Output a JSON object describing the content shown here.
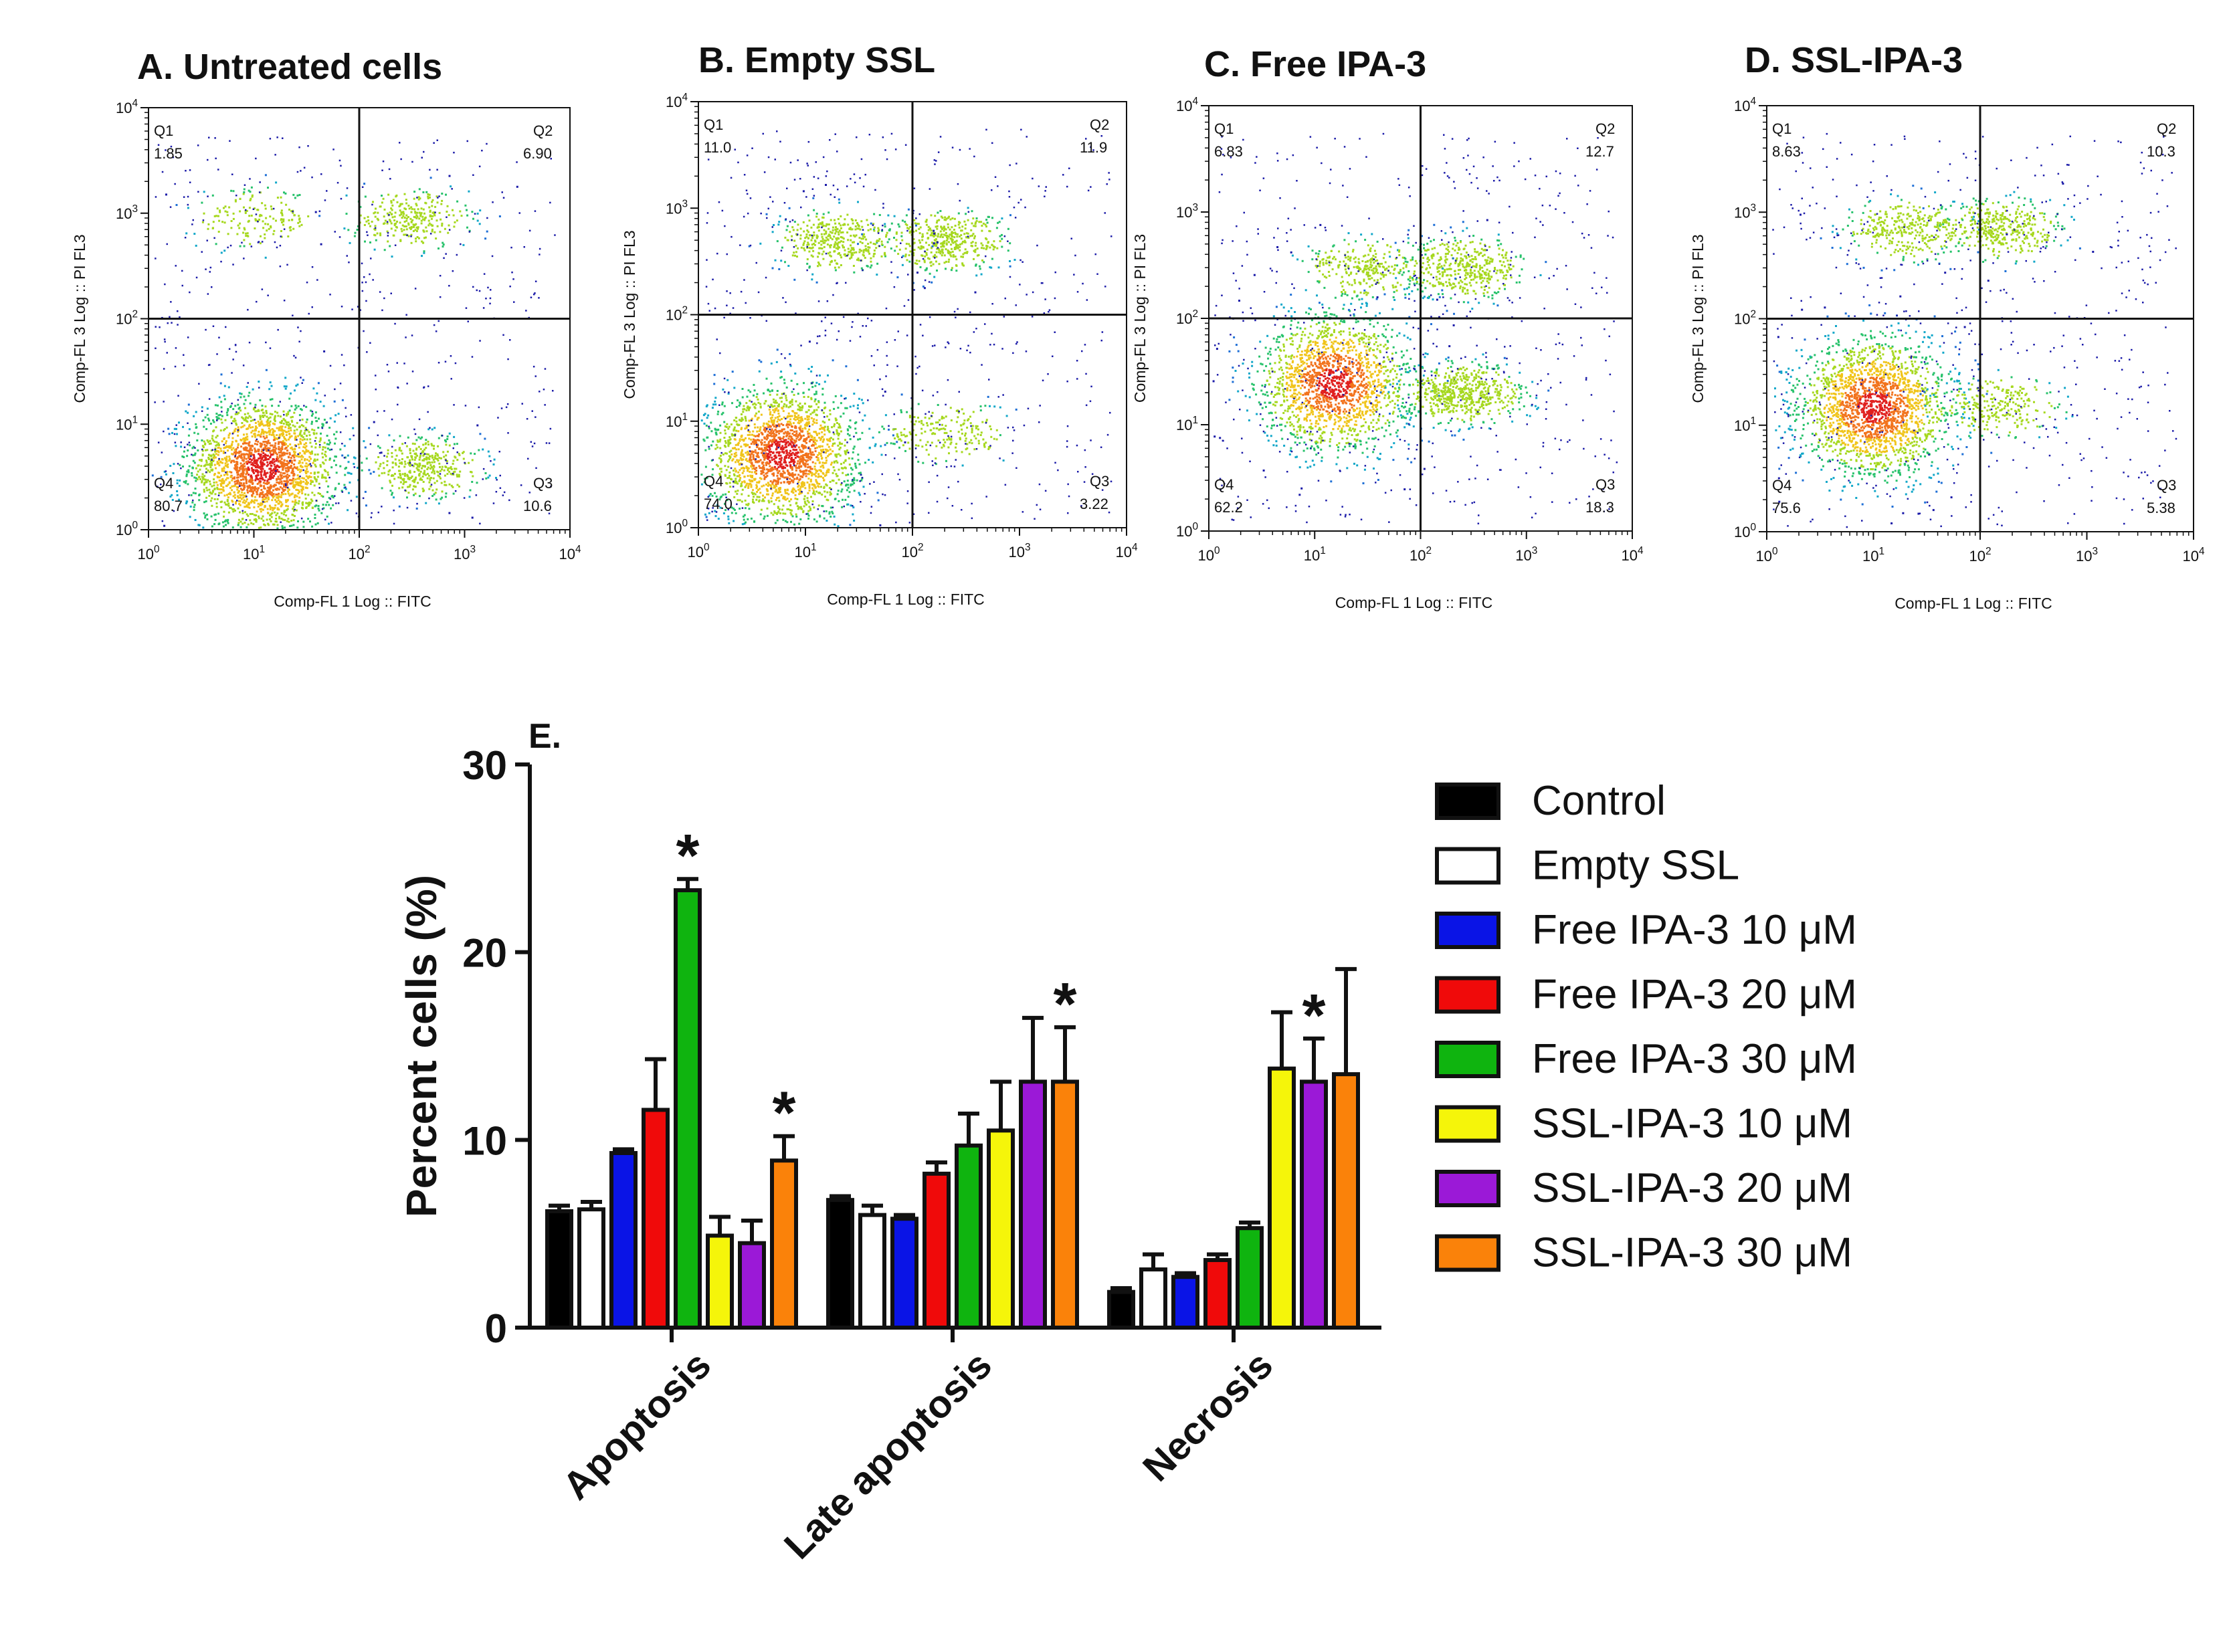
{
  "figure": {
    "panel_e_letter": "E."
  },
  "chart_data": [
    {
      "type": "scatter",
      "panel": "A",
      "title": "A. Untreated cells",
      "xlabel": "Comp-FL 1 Log :: FITC",
      "ylabel": "Comp-FL 3 Log :: PI FL3",
      "x_scale": "log",
      "y_scale": "log",
      "xlim": [
        1,
        10000
      ],
      "ylim": [
        1,
        10000
      ],
      "x_ticks": [
        "10^0",
        "10^1",
        "10^2",
        "10^3",
        "10^4"
      ],
      "y_ticks": [
        "10^0",
        "10^1",
        "10^2",
        "10^3",
        "10^4"
      ],
      "gate": {
        "x": 100,
        "y": 100
      },
      "quadrants": [
        {
          "name": "Q1",
          "value": "1.85"
        },
        {
          "name": "Q2",
          "value": "6.90"
        },
        {
          "name": "Q3",
          "value": "10.6"
        },
        {
          "name": "Q4",
          "value": "80.7"
        }
      ],
      "clusters": [
        {
          "x": 12,
          "y": 4,
          "weight": 0.8
        },
        {
          "x": 300,
          "y": 900,
          "weight": 0.069
        },
        {
          "x": 400,
          "y": 4,
          "weight": 0.106
        },
        {
          "x": 10,
          "y": 900,
          "weight": 0.0185
        }
      ]
    },
    {
      "type": "scatter",
      "panel": "B",
      "title": "B. Empty SSL",
      "xlabel": "Comp-FL 1 Log :: FITC",
      "ylabel": "Comp-FL 3 Log :: PI FL3",
      "x_scale": "log",
      "y_scale": "log",
      "xlim": [
        1,
        10000
      ],
      "ylim": [
        1,
        10000
      ],
      "x_ticks": [
        "10^0",
        "10^1",
        "10^2",
        "10^3",
        "10^4"
      ],
      "y_ticks": [
        "10^0",
        "10^1",
        "10^2",
        "10^3",
        "10^4"
      ],
      "gate": {
        "x": 100,
        "y": 100
      },
      "quadrants": [
        {
          "name": "Q1",
          "value": "11.0"
        },
        {
          "name": "Q2",
          "value": "11.9"
        },
        {
          "name": "Q3",
          "value": "3.22"
        },
        {
          "name": "Q4",
          "value": "74.0"
        }
      ],
      "clusters": [
        {
          "x": 6,
          "y": 5,
          "weight": 0.74
        },
        {
          "x": 200,
          "y": 500,
          "weight": 0.119
        },
        {
          "x": 200,
          "y": 8,
          "weight": 0.0322
        },
        {
          "x": 20,
          "y": 500,
          "weight": 0.11
        }
      ]
    },
    {
      "type": "scatter",
      "panel": "C",
      "title": "C. Free IPA-3",
      "xlabel": "Comp-FL 1 Log :: FITC",
      "ylabel": "Comp-FL 3 Log :: PI FL3",
      "x_scale": "log",
      "y_scale": "log",
      "xlim": [
        1,
        10000
      ],
      "ylim": [
        1,
        10000
      ],
      "x_ticks": [
        "10^0",
        "10^1",
        "10^2",
        "10^3",
        "10^4"
      ],
      "y_ticks": [
        "10^0",
        "10^1",
        "10^2",
        "10^3",
        "10^4"
      ],
      "gate": {
        "x": 100,
        "y": 100
      },
      "quadrants": [
        {
          "name": "Q1",
          "value": "6.83"
        },
        {
          "name": "Q2",
          "value": "12.7"
        },
        {
          "name": "Q3",
          "value": "18.3"
        },
        {
          "name": "Q4",
          "value": "62.2"
        }
      ],
      "clusters": [
        {
          "x": 15,
          "y": 25,
          "weight": 0.622
        },
        {
          "x": 250,
          "y": 300,
          "weight": 0.127
        },
        {
          "x": 250,
          "y": 20,
          "weight": 0.183
        },
        {
          "x": 30,
          "y": 300,
          "weight": 0.068
        }
      ]
    },
    {
      "type": "scatter",
      "panel": "D",
      "title": "D. SSL-IPA-3",
      "xlabel": "Comp-FL 1 Log :: FITC",
      "ylabel": "Comp-FL 3 Log :: PI FL3",
      "x_scale": "log",
      "y_scale": "log",
      "xlim": [
        1,
        10000
      ],
      "ylim": [
        1,
        10000
      ],
      "x_ticks": [
        "10^0",
        "10^1",
        "10^2",
        "10^3",
        "10^4"
      ],
      "y_ticks": [
        "10^0",
        "10^1",
        "10^2",
        "10^3",
        "10^4"
      ],
      "gate": {
        "x": 100,
        "y": 100
      },
      "quadrants": [
        {
          "name": "Q1",
          "value": "8.63"
        },
        {
          "name": "Q2",
          "value": "10.3"
        },
        {
          "name": "Q3",
          "value": "5.38"
        },
        {
          "name": "Q4",
          "value": "75.6"
        }
      ],
      "clusters": [
        {
          "x": 10,
          "y": 15,
          "weight": 0.756
        },
        {
          "x": 150,
          "y": 700,
          "weight": 0.103
        },
        {
          "x": 150,
          "y": 15,
          "weight": 0.0538
        },
        {
          "x": 20,
          "y": 700,
          "weight": 0.0863
        }
      ]
    },
    {
      "type": "bar",
      "panel": "E",
      "title": "",
      "xlabel": "",
      "ylabel": "Percent cells (%)",
      "ylim": [
        0,
        30
      ],
      "y_ticks": [
        0,
        10,
        20,
        30
      ],
      "categories": [
        "Apoptosis",
        "Late apoptosis",
        "Necrosis"
      ],
      "series": [
        {
          "name": "Control",
          "color": "#000000",
          "values": [
            6.2,
            6.8,
            1.9
          ],
          "errors": [
            0.3,
            0.2,
            0.2
          ],
          "sig": [
            false,
            false,
            false
          ]
        },
        {
          "name": "Empty SSL",
          "color": "#ffffff",
          "values": [
            6.3,
            6.0,
            3.1
          ],
          "errors": [
            0.4,
            0.5,
            0.8
          ],
          "sig": [
            false,
            false,
            false
          ]
        },
        {
          "name": "Free IPA-3 10 μM",
          "color": "#0a14e6",
          "values": [
            9.3,
            5.8,
            2.7
          ],
          "errors": [
            0.2,
            0.2,
            0.2
          ],
          "sig": [
            false,
            false,
            false
          ]
        },
        {
          "name": "Free IPA-3 20 μM",
          "color": "#f00a0a",
          "values": [
            11.6,
            8.2,
            3.6
          ],
          "errors": [
            2.7,
            0.6,
            0.3
          ],
          "sig": [
            false,
            false,
            false
          ]
        },
        {
          "name": "Free IPA-3 30 μM",
          "color": "#0fb40f",
          "values": [
            23.3,
            9.7,
            5.3
          ],
          "errors": [
            0.6,
            1.7,
            0.3
          ],
          "sig": [
            true,
            false,
            false
          ]
        },
        {
          "name": "SSL-IPA-3 10 μM",
          "color": "#f5f50a",
          "values": [
            4.9,
            10.5,
            13.8
          ],
          "errors": [
            1.0,
            2.6,
            3.0
          ],
          "sig": [
            false,
            false,
            false
          ]
        },
        {
          "name": "SSL-IPA-3 20 μM",
          "color": "#9b19d7",
          "values": [
            4.5,
            13.1,
            13.1
          ],
          "errors": [
            1.2,
            3.4,
            2.3
          ],
          "sig": [
            false,
            false,
            true
          ]
        },
        {
          "name": "SSL-IPA-3 30 μM",
          "color": "#fa820a",
          "values": [
            8.9,
            13.1,
            13.5
          ],
          "errors": [
            1.3,
            2.9,
            5.6
          ],
          "sig": [
            true,
            true,
            false
          ]
        }
      ],
      "significance_marker": "*",
      "legend_position": "right"
    }
  ]
}
